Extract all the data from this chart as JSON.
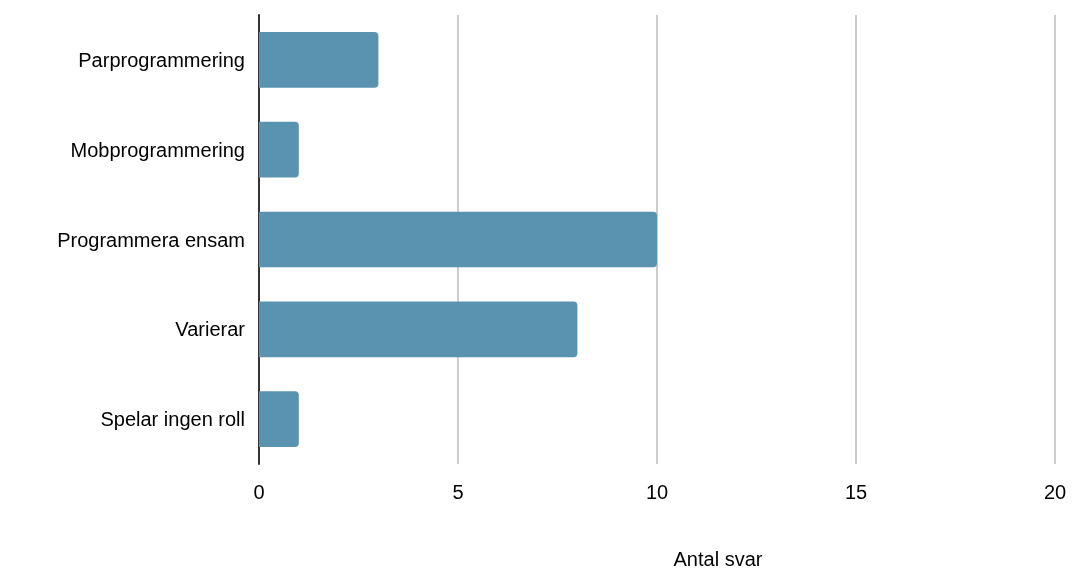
{
  "chart_data": {
    "type": "bar",
    "orientation": "horizontal",
    "categories": [
      "Parprogrammering",
      "Mobprogrammering",
      "Programmera ensam",
      "Varierar",
      "Spelar ingen roll"
    ],
    "values": [
      3,
      1,
      10,
      8,
      1
    ],
    "color": "#5a93b0",
    "xlabel": "Antal svar",
    "xlim": [
      0,
      20
    ],
    "xticks": [
      0,
      5,
      10,
      15,
      20
    ],
    "grid": "x"
  }
}
